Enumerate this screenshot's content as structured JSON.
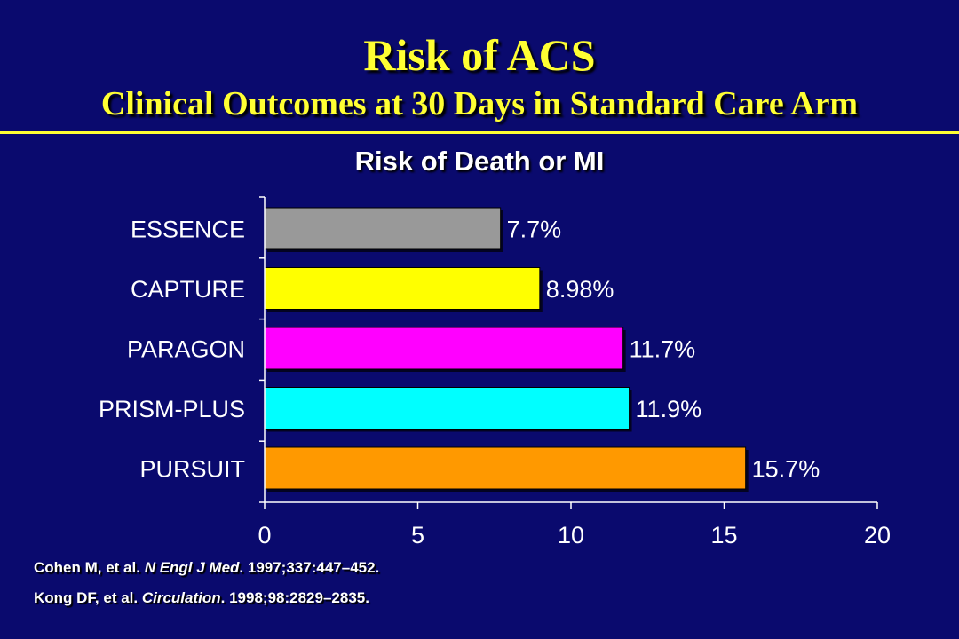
{
  "slide": {
    "title": "Risk of ACS",
    "subtitle": "Clinical Outcomes at 30 Days in Standard Care Arm"
  },
  "references": [
    {
      "authors": "Cohen M, et al. ",
      "journal": "N Engl J Med",
      "details": ". 1997;337:447–452."
    },
    {
      "authors": "Kong DF, et al. ",
      "journal": "Circulation",
      "details": ". 1998;98:2829–2835."
    }
  ],
  "chart_data": {
    "type": "bar",
    "orientation": "horizontal",
    "title": "Risk of Death or MI",
    "categories": [
      "ESSENCE",
      "CAPTURE",
      "PARAGON",
      "PRISM-PLUS",
      "PURSUIT"
    ],
    "values": [
      7.7,
      8.98,
      11.7,
      11.9,
      15.7
    ],
    "data_labels": [
      "7.7%",
      "8.98%",
      "11.7%",
      "11.9%",
      "15.7%"
    ],
    "colors": [
      "#999999",
      "#ffff00",
      "#ff00ff",
      "#00ffff",
      "#ff9900"
    ],
    "xlim": [
      0,
      20
    ],
    "xticks": [
      0,
      5,
      10,
      15,
      20
    ],
    "xlabel": "",
    "ylabel": "",
    "grid": false,
    "legend": "none"
  }
}
